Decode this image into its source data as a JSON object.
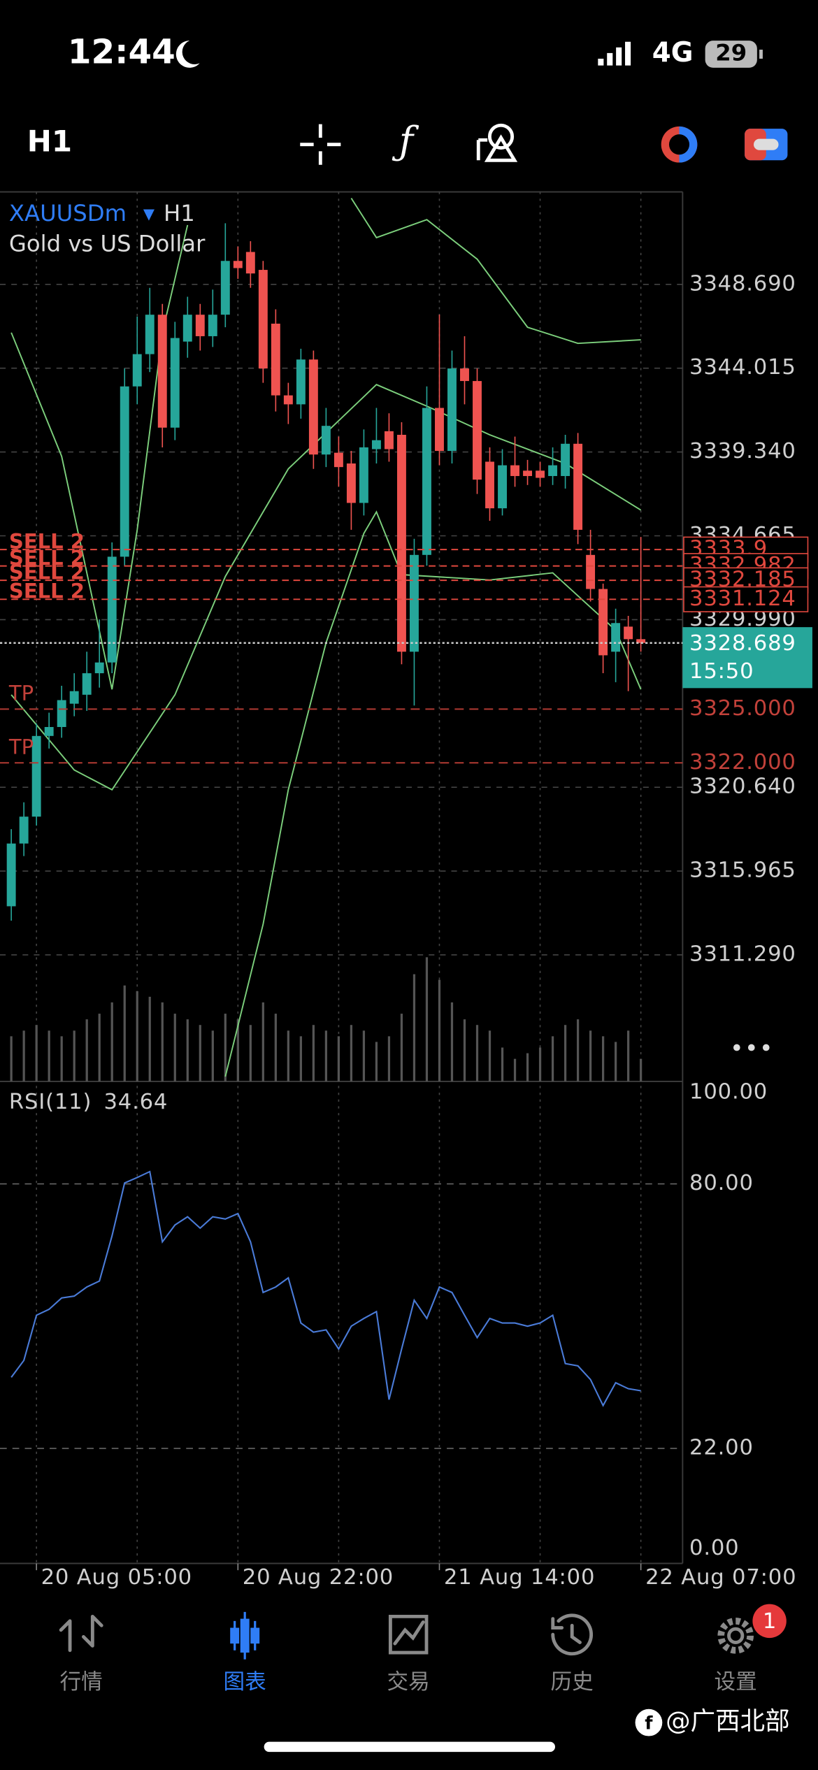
{
  "status": {
    "time": "12:44",
    "network": "4G",
    "battery": "29"
  },
  "toolbar": {
    "timeframe": "H1"
  },
  "chart_data": [
    {
      "type": "candlestick",
      "symbol": "XAUUSDm",
      "timeframe": "H1",
      "description": "Gold vs US Dollar",
      "up_color": "#26a69a",
      "down_color": "#ef5350",
      "band_color": "#7ccf7c",
      "volume_color": "#555555",
      "open": [
        3314.0,
        3317.5,
        3319.0,
        3323.5,
        3324.0,
        3325.3,
        3325.8,
        3327.0,
        3327.6,
        3333.5,
        3343.0,
        3344.8,
        3347.0,
        3340.7,
        3345.5,
        3347.0,
        3345.8,
        3347.0,
        3350.0,
        3350.5,
        3349.5,
        3346.5,
        3342.5,
        3342.0,
        3344.5,
        3339.2,
        3339.3,
        3338.7,
        3336.5,
        3339.5,
        3340.5,
        3340.3,
        3328.2,
        3333.6,
        3341.8,
        3339.4,
        3344.0,
        3343.3,
        3338.8,
        3336.2,
        3338.6,
        3338.3,
        3338.3,
        3338.0,
        3338.0,
        3339.8,
        3333.6,
        3331.7,
        3328.2,
        3329.6,
        3328.9
      ],
      "high": [
        3318.3,
        3319.8,
        3324.2,
        3324.8,
        3326.3,
        3327.0,
        3328.2,
        3330.0,
        3334.3,
        3344.0,
        3346.9,
        3348.5,
        3347.6,
        3346.6,
        3348.0,
        3347.6,
        3348.4,
        3352.1,
        3350.8,
        3351.1,
        3350.0,
        3347.3,
        3343.2,
        3345.1,
        3345.0,
        3341.8,
        3340.2,
        3339.4,
        3340.6,
        3341.8,
        3341.5,
        3341.0,
        3334.5,
        3343.0,
        3347.0,
        3345.0,
        3345.8,
        3344.0,
        3339.6,
        3339.5,
        3340.2,
        3338.9,
        3338.8,
        3339.6,
        3340.3,
        3340.4,
        3335.0,
        3332.0,
        3330.6,
        3330.2,
        3334.6
      ],
      "low": [
        3313.2,
        3316.8,
        3318.5,
        3322.8,
        3323.4,
        3324.6,
        3324.9,
        3326.2,
        3327.0,
        3333.0,
        3342.0,
        3343.8,
        3339.6,
        3340.0,
        3344.6,
        3345.0,
        3345.2,
        3346.3,
        3349.0,
        3348.5,
        3343.2,
        3341.6,
        3340.9,
        3341.2,
        3338.4,
        3338.5,
        3337.4,
        3335.0,
        3335.8,
        3338.7,
        3338.8,
        3327.5,
        3325.2,
        3333.0,
        3338.6,
        3338.7,
        3342.0,
        3337.0,
        3335.5,
        3335.8,
        3337.4,
        3337.5,
        3337.4,
        3337.5,
        3337.3,
        3334.2,
        3331.0,
        3327.0,
        3326.5,
        3326.0,
        3328.2
      ],
      "close": [
        3317.5,
        3319.0,
        3323.5,
        3324.0,
        3325.5,
        3326.0,
        3327.0,
        3327.6,
        3333.5,
        3343.0,
        3344.8,
        3347.0,
        3340.7,
        3345.7,
        3347.0,
        3345.8,
        3347.0,
        3350.0,
        3349.6,
        3349.3,
        3344.0,
        3342.5,
        3342.0,
        3344.5,
        3339.2,
        3340.8,
        3338.5,
        3336.5,
        3339.6,
        3340.0,
        3339.5,
        3328.2,
        3333.6,
        3341.8,
        3339.4,
        3344.0,
        3343.3,
        3337.8,
        3336.2,
        3338.6,
        3338.0,
        3338.0,
        3337.9,
        3338.6,
        3339.8,
        3335.0,
        3331.7,
        3328.0,
        3329.8,
        3328.9,
        3328.689
      ],
      "volumes": [
        40,
        45,
        50,
        45,
        40,
        45,
        55,
        60,
        70,
        85,
        80,
        75,
        70,
        60,
        55,
        50,
        45,
        60,
        55,
        50,
        70,
        60,
        45,
        40,
        50,
        45,
        40,
        50,
        45,
        35,
        40,
        60,
        95,
        110,
        90,
        70,
        55,
        50,
        45,
        30,
        20,
        25,
        30,
        40,
        50,
        55,
        45,
        40,
        35,
        45,
        20
      ],
      "bands": [
        {
          "x": [
            0,
            4,
            8,
            10,
            12,
            14,
            20,
            27,
            29,
            33,
            37,
            41,
            45,
            50
          ],
          "values": [
            3346.0,
            3339.1,
            3326.1,
            3335.0,
            3346.0,
            3352.0,
            null,
            3353.5,
            3351.3,
            3352.3,
            3350.1,
            3346.3,
            3345.4,
            3345.6
          ]
        },
        {
          "x": [
            0,
            5,
            8,
            13,
            17,
            22,
            29,
            33,
            38,
            44,
            50
          ],
          "values": [
            3325.8,
            3321.6,
            3320.5,
            3325.8,
            3332.4,
            3338.4,
            3343.1,
            3341.9,
            3340.3,
            3338.7,
            3336.1
          ]
        },
        {
          "x": [
            17,
            20,
            22,
            25,
            28,
            29,
            31,
            38,
            43,
            48,
            50
          ],
          "values": [
            3304.5,
            3313.0,
            3320.5,
            3328.7,
            3334.8,
            3336.0,
            3332.5,
            3332.2,
            3332.6,
            3329.4,
            3326.1
          ]
        }
      ],
      "ylim": [
        3304.23,
        3353.85
      ],
      "yticks": [
        {
          "value": 3311.29,
          "label": "3311.290"
        },
        {
          "value": 3315.965,
          "label": "3315.965"
        },
        {
          "value": 3320.64,
          "label": "3320.640"
        },
        {
          "value": 3329.99,
          "label": "3329.990"
        },
        {
          "value": 3334.665,
          "label": "3334.665"
        },
        {
          "value": 3339.34,
          "label": "3339.340"
        },
        {
          "value": 3344.015,
          "label": "3344.015"
        },
        {
          "value": 3348.69,
          "label": "3348.690"
        }
      ],
      "xticks": [
        {
          "value": 2,
          "label": "20 Aug 05:00"
        },
        {
          "value": 18,
          "label": "20 Aug 22:00"
        },
        {
          "value": 34,
          "label": "21 Aug 14:00"
        },
        {
          "value": 50,
          "label": "22 Aug 07:00"
        }
      ],
      "xgrid": [
        10,
        26,
        42
      ],
      "orders": [
        {
          "label": "SELL 2",
          "value": 3333.9
        },
        {
          "label": "SELL 2",
          "value": 3332.982
        },
        {
          "label": "SELL 2",
          "value": 3332.185
        },
        {
          "label": "SELL 2",
          "value": 3331.124
        }
      ],
      "take_profits": [
        {
          "label": "TP",
          "value": 3325,
          "value_label": "3325.000"
        },
        {
          "label": "TP",
          "value": 3322,
          "value_label": "3322.000"
        }
      ],
      "current_price": {
        "value": 3328.689,
        "countdown": "15:50"
      }
    },
    {
      "type": "line",
      "title": "RSI(11)",
      "current": 34.64,
      "color": "#4a7bd8",
      "values": [
        37.6,
        41.3,
        51.2,
        52.5,
        55,
        55.4,
        57.4,
        58.7,
        68.6,
        80.2,
        81.4,
        82.7,
        67.3,
        71,
        72.8,
        70.3,
        72.8,
        72.3,
        73.5,
        67.3,
        56.2,
        57.4,
        59.4,
        49.5,
        47.5,
        48,
        43.8,
        48.8,
        50.5,
        52,
        32.7,
        43.8,
        54.5,
        50.5,
        57.4,
        56.2,
        51.2,
        46.3,
        50.5,
        49.5,
        49.5,
        48.8,
        49.5,
        51.2,
        40.6,
        40.1,
        37.1,
        31.4,
        36.4,
        35.1,
        34.64
      ],
      "ylim": [
        0,
        100
      ],
      "yticks": [
        {
          "value": 0,
          "label": "0.00"
        },
        {
          "value": 22,
          "label": "22.00"
        },
        {
          "value": 80,
          "label": "80.00"
        },
        {
          "value": 100,
          "label": "100.00"
        }
      ]
    }
  ],
  "nav": {
    "items": [
      "行情",
      "图表",
      "交易",
      "历史",
      "设置"
    ],
    "active": 1,
    "badge": "1"
  },
  "watermark": "@广西北部"
}
